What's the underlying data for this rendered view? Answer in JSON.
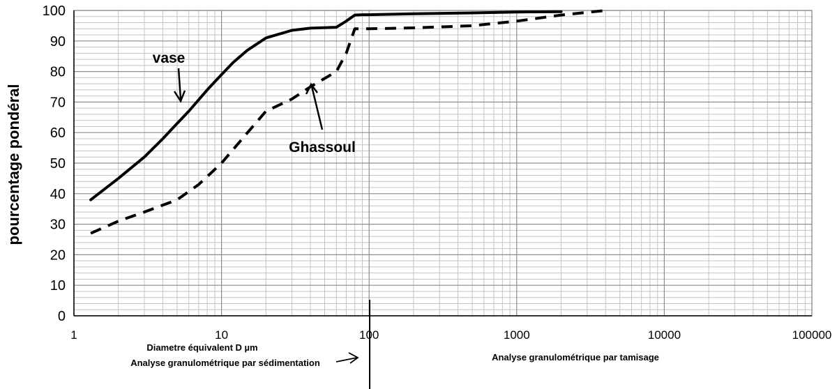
{
  "chart_data": {
    "type": "line",
    "xscale": "log",
    "xlim": [
      1,
      100000
    ],
    "ylim": [
      0,
      100
    ],
    "ylabel": "pourcentage pondéral",
    "xticks": [
      "1",
      "10",
      "100",
      "1000",
      "10000",
      "100000"
    ],
    "yticks": [
      "0",
      "10",
      "20",
      "30",
      "40",
      "50",
      "60",
      "70",
      "80",
      "90",
      "100"
    ],
    "grid": true,
    "series": [
      {
        "name": "vase",
        "style": "solid",
        "color": "#000000",
        "x": [
          1.3,
          2,
          3,
          4,
          5,
          6,
          8,
          10,
          12,
          15,
          20,
          30,
          40,
          60,
          70,
          80,
          90,
          100,
          200,
          500,
          1000,
          2000
        ],
        "y": [
          38,
          45,
          52,
          58,
          63,
          67,
          74,
          79,
          83,
          87,
          91,
          93.5,
          94.2,
          94.5,
          96.5,
          98.5,
          98.6,
          98.6,
          98.9,
          99.2,
          99.5,
          99.6
        ]
      },
      {
        "name": "Ghassoul",
        "style": "dashed",
        "color": "#000000",
        "x": [
          1.3,
          2,
          3,
          5,
          7,
          10,
          15,
          20,
          30,
          40,
          60,
          70,
          80,
          90,
          100,
          200,
          500,
          1000,
          2000,
          4000
        ],
        "y": [
          27,
          31,
          34,
          38,
          43,
          50,
          60,
          67,
          71,
          75,
          80,
          86,
          94,
          94,
          94,
          94.3,
          95,
          96.5,
          98.5,
          100
        ]
      }
    ],
    "annotations": {
      "vase": "vase",
      "ghassoul": "Ghassoul",
      "diameter": "Diametre équivalent D µm",
      "sedimentation": "Analyse granulométrique par sédimentation",
      "tamisage": "Analyse granulométrique par tamisage"
    },
    "colors": {
      "grid_major": "#8c8c8c",
      "grid_minor": "#c4c4c4",
      "axis": "#000000"
    }
  }
}
